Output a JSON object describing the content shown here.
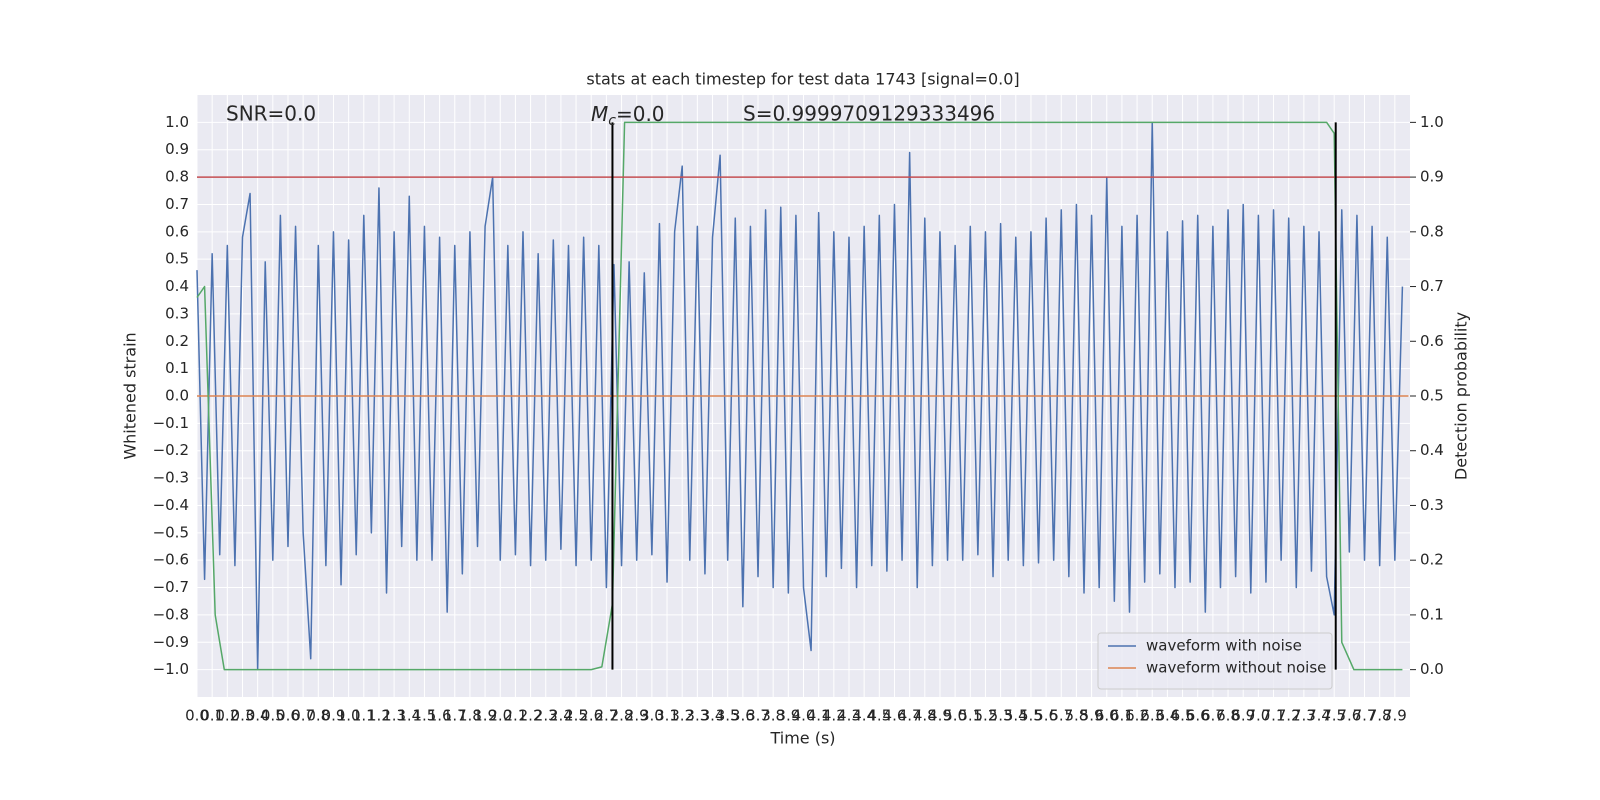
{
  "chart_data": {
    "type": "line",
    "title": "stats at each timestep for test data 1743 [signal=0.0]",
    "xlabel": "Time (s)",
    "ylabel": "Whitened strain",
    "y2label": "Detection probability",
    "annotations": {
      "snr": "SNR=0.0",
      "mass": {
        "symbol": "M",
        "subscript": "c",
        "text": "=0.0"
      },
      "score": "S=0.9999709129333496"
    },
    "xlim": [
      0,
      8.0
    ],
    "ylim": [
      -1.1,
      1.1
    ],
    "y2lim": [
      -0.05,
      1.05
    ],
    "grid": true,
    "legend": "lower right",
    "xticks": [
      {
        "value": 0,
        "label": "0.0"
      },
      0.1,
      0.2,
      0.3,
      0.4,
      0.5,
      0.6,
      0.7,
      0.8,
      0.9,
      {
        "value": 1,
        "label": "1.0"
      },
      1.1,
      1.2,
      1.3,
      1.4,
      1.5,
      1.6,
      1.7,
      1.8,
      1.9,
      {
        "value": 2,
        "label": "2.0"
      },
      2.1,
      2.2,
      2.3,
      2.4,
      2.5,
      2.6,
      2.7,
      2.8,
      2.9,
      {
        "value": 3,
        "label": "3.0"
      },
      3.1,
      3.2,
      3.3,
      3.4,
      3.5,
      3.6,
      3.7,
      3.8,
      3.9,
      {
        "value": 4,
        "label": "4.0"
      },
      4.1,
      4.2,
      4.3,
      4.4,
      4.5,
      4.6,
      4.7,
      4.8,
      4.9,
      {
        "value": 5,
        "label": "5.0"
      },
      5.1,
      5.2,
      5.3,
      5.4,
      5.5,
      5.6,
      5.7,
      5.8,
      5.9,
      {
        "value": 6,
        "label": "6.0"
      },
      6.1,
      6.2,
      6.3,
      6.4,
      6.5,
      6.6,
      6.7,
      6.8,
      6.9,
      {
        "value": 7,
        "label": "7.0"
      },
      7.1,
      7.2,
      7.3,
      7.4,
      7.5,
      7.6,
      7.7,
      7.8,
      7.9
    ],
    "yticks": [
      {
        "value": -1.0,
        "label": "−1.0"
      },
      {
        "value": -0.9,
        "label": "−0.9"
      },
      {
        "value": -0.8,
        "label": "−0.8"
      },
      {
        "value": -0.7,
        "label": "−0.7"
      },
      {
        "value": -0.6,
        "label": "−0.6"
      },
      {
        "value": -0.5,
        "label": "−0.5"
      },
      {
        "value": -0.4,
        "label": "−0.4"
      },
      {
        "value": -0.3,
        "label": "−0.3"
      },
      {
        "value": -0.2,
        "label": "−0.2"
      },
      {
        "value": -0.1,
        "label": "−0.1"
      },
      {
        "value": 0,
        "label": "0.0"
      },
      0.1,
      0.2,
      0.3,
      0.4,
      0.5,
      0.6,
      0.7,
      0.8,
      0.9,
      {
        "value": 1,
        "label": "1.0"
      }
    ],
    "y2ticks": [
      {
        "value": 0,
        "label": "0.0"
      },
      0.1,
      0.2,
      0.3,
      0.4,
      0.5,
      0.6,
      0.7,
      0.8,
      0.9,
      {
        "value": 1,
        "label": "1.0"
      }
    ],
    "series": [
      {
        "name": "waveform with noise",
        "color": "#4c72b0",
        "x": [
          0,
          0.05,
          0.1,
          0.15,
          0.2,
          0.25,
          0.3,
          0.35,
          0.4,
          0.45,
          0.5,
          0.55,
          0.6,
          0.65,
          0.7,
          0.75,
          0.8,
          0.85,
          0.9,
          0.95,
          1,
          1.05,
          1.1,
          1.15,
          1.2,
          1.25,
          1.3,
          1.35,
          1.4,
          1.45,
          1.5,
          1.55,
          1.6,
          1.65,
          1.7,
          1.75,
          1.8,
          1.85,
          1.9,
          1.95,
          2,
          2.05,
          2.1,
          2.15,
          2.2,
          2.25,
          2.3,
          2.35,
          2.4,
          2.45,
          2.5,
          2.55,
          2.6,
          2.65,
          2.7,
          2.75,
          2.8,
          2.85,
          2.9,
          2.95,
          3,
          3.05,
          3.1,
          3.15,
          3.2,
          3.25,
          3.3,
          3.35,
          3.4,
          3.45,
          3.5,
          3.55,
          3.6,
          3.65,
          3.7,
          3.75,
          3.8,
          3.85,
          3.9,
          3.95,
          4,
          4.05,
          4.1,
          4.15,
          4.2,
          4.25,
          4.3,
          4.35,
          4.4,
          4.45,
          4.5,
          4.55,
          4.6,
          4.65,
          4.7,
          4.75,
          4.8,
          4.85,
          4.9,
          4.95,
          5,
          5.05,
          5.1,
          5.15,
          5.2,
          5.25,
          5.3,
          5.35,
          5.4,
          5.45,
          5.5,
          5.55,
          5.6,
          5.65,
          5.7,
          5.75,
          5.8,
          5.85,
          5.9,
          5.95,
          6,
          6.05,
          6.1,
          6.15,
          6.2,
          6.25,
          6.3,
          6.35,
          6.4,
          6.45,
          6.5,
          6.55,
          6.6,
          6.65,
          6.7,
          6.75,
          6.8,
          6.85,
          6.9,
          6.95,
          7,
          7.05,
          7.1,
          7.15,
          7.2,
          7.25,
          7.3,
          7.35,
          7.4,
          7.45,
          7.5,
          7.55,
          7.6,
          7.65,
          7.7,
          7.75,
          7.8,
          7.85,
          7.9,
          7.95
        ],
        "values": [
          0.46,
          -0.67,
          0.52,
          -0.58,
          0.55,
          -0.62,
          0.58,
          0.74,
          -1.0,
          0.49,
          -0.6,
          0.66,
          -0.55,
          0.62,
          -0.5,
          -0.96,
          0.55,
          -0.62,
          0.6,
          -0.69,
          0.57,
          -0.58,
          0.66,
          -0.5,
          0.76,
          -0.72,
          0.6,
          -0.55,
          0.73,
          -0.6,
          0.62,
          -0.6,
          0.58,
          -0.79,
          0.55,
          -0.65,
          0.6,
          -0.55,
          0.62,
          0.8,
          -0.6,
          0.55,
          -0.58,
          0.6,
          -0.62,
          0.52,
          -0.6,
          0.57,
          -0.56,
          0.55,
          -0.62,
          0.58,
          -0.6,
          0.55,
          -0.7,
          0.48,
          -0.62,
          0.49,
          -0.6,
          0.45,
          -0.58,
          0.63,
          -0.68,
          0.6,
          0.84,
          -0.6,
          0.62,
          -0.65,
          0.58,
          0.88,
          -0.6,
          0.65,
          -0.77,
          0.62,
          -0.66,
          0.68,
          -0.7,
          0.69,
          -0.72,
          0.66,
          -0.7,
          -0.93,
          0.67,
          -0.66,
          0.6,
          -0.63,
          0.58,
          -0.7,
          0.62,
          -0.62,
          0.66,
          -0.64,
          0.7,
          -0.6,
          0.89,
          -0.7,
          0.65,
          -0.62,
          0.6,
          -0.6,
          0.55,
          -0.6,
          0.62,
          -0.58,
          0.6,
          -0.66,
          0.63,
          -0.6,
          0.58,
          -0.62,
          0.6,
          -0.61,
          0.65,
          -0.6,
          0.68,
          -0.66,
          0.7,
          -0.72,
          0.66,
          -0.7,
          0.8,
          -0.75,
          0.62,
          -0.79,
          0.66,
          -0.68,
          1.0,
          -0.65,
          0.6,
          -0.7,
          0.64,
          -0.68,
          0.66,
          -0.79,
          0.62,
          -0.7,
          0.68,
          -0.66,
          0.7,
          -0.72,
          0.66,
          -0.68,
          0.68,
          -0.6,
          0.65,
          -0.7,
          0.62,
          -0.64,
          0.6,
          -0.66,
          -0.8,
          0.68,
          -0.57,
          0.66,
          -0.6,
          0.62,
          -0.62,
          0.58,
          -0.6,
          0.4
        ]
      },
      {
        "name": "waveform without noise",
        "color": "#dd8452",
        "x": [
          0,
          7.99
        ],
        "values": [
          0,
          0
        ]
      },
      {
        "color": "#55a868",
        "axis": "y2",
        "x": [
          0,
          0.05,
          0.12,
          0.18,
          2.6,
          2.67,
          2.74,
          2.82,
          7.45,
          7.5,
          7.55,
          7.63,
          7.95
        ],
        "values": [
          0.68,
          0.7,
          0.1,
          0,
          0,
          0.005,
          0.12,
          1.0,
          1.0,
          0.98,
          0.05,
          0,
          0
        ]
      }
    ],
    "hlines": [
      {
        "y": 0.8,
        "color": "#c44e52"
      }
    ],
    "vlines": [
      {
        "x": 2.74,
        "y2range": [
          0,
          1
        ],
        "color": "#000000"
      },
      {
        "x": 7.51,
        "y2range": [
          0,
          1
        ],
        "color": "#000000"
      }
    ]
  }
}
